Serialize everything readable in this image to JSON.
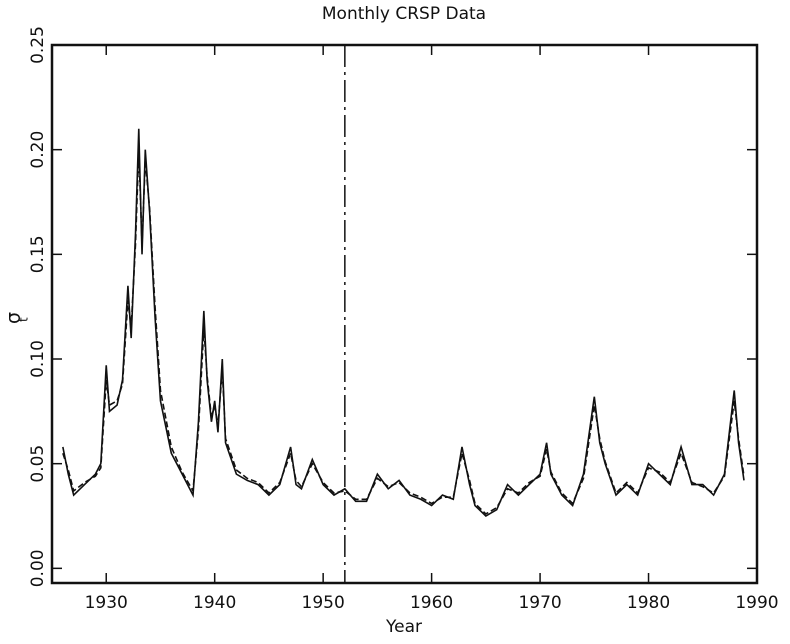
{
  "chart_data": {
    "type": "line",
    "title": "Monthly CRSP Data",
    "xlabel": "Year",
    "ylabel": "σ",
    "ylabel_sub": "t",
    "xlim": [
      1925,
      1990
    ],
    "xticks": [
      1930,
      1940,
      1950,
      1960,
      1970,
      1980,
      1990
    ],
    "ylim": [
      -0.007,
      0.25
    ],
    "yticks": [
      {
        "value": 0,
        "label": "0.00"
      },
      {
        "value": 0.05,
        "label": "0.05"
      },
      {
        "value": 0.1,
        "label": "0.10"
      },
      {
        "value": 0.15,
        "label": "0.15"
      },
      {
        "value": 0.2,
        "label": "0.20"
      },
      {
        "value": 0.25,
        "label": "0.25"
      }
    ],
    "vline_x": 1952,
    "x": [
      1926,
      1926.5,
      1927,
      1928,
      1929,
      1929.5,
      1930,
      1930.3,
      1931,
      1931.5,
      1932,
      1932.3,
      1932.7,
      1933,
      1933.3,
      1933.6,
      1934,
      1934.5,
      1935,
      1936,
      1937,
      1938,
      1938.5,
      1939,
      1939.3,
      1939.7,
      1940,
      1940.3,
      1940.7,
      1941,
      1942,
      1943,
      1944,
      1945,
      1946,
      1947,
      1947.5,
      1948,
      1949,
      1950,
      1951,
      1952,
      1953,
      1954,
      1955,
      1956,
      1957,
      1958,
      1959,
      1960,
      1961,
      1962,
      1962.8,
      1963.5,
      1964,
      1965,
      1966,
      1967,
      1968,
      1969,
      1970,
      1970.6,
      1971,
      1972,
      1973,
      1974,
      1975,
      1975.5,
      1976,
      1977,
      1978,
      1979,
      1980,
      1981,
      1982,
      1983,
      1984,
      1985,
      1986,
      1987,
      1987.9,
      1988.3,
      1988.8
    ],
    "series": [
      {
        "color": "#111111",
        "dash": false,
        "values": [
          0.058,
          0.045,
          0.035,
          0.04,
          0.045,
          0.05,
          0.097,
          0.075,
          0.078,
          0.09,
          0.135,
          0.11,
          0.16,
          0.21,
          0.15,
          0.2,
          0.17,
          0.12,
          0.08,
          0.055,
          0.045,
          0.035,
          0.07,
          0.123,
          0.09,
          0.07,
          0.08,
          0.065,
          0.1,
          0.06,
          0.045,
          0.042,
          0.04,
          0.035,
          0.04,
          0.058,
          0.04,
          0.038,
          0.052,
          0.04,
          0.035,
          0.038,
          0.032,
          0.032,
          0.045,
          0.038,
          0.042,
          0.035,
          0.033,
          0.03,
          0.035,
          0.033,
          0.058,
          0.04,
          0.03,
          0.025,
          0.028,
          0.04,
          0.035,
          0.04,
          0.045,
          0.06,
          0.045,
          0.035,
          0.03,
          0.045,
          0.082,
          0.06,
          0.05,
          0.035,
          0.04,
          0.035,
          0.05,
          0.045,
          0.04,
          0.058,
          0.04,
          0.04,
          0.035,
          0.045,
          0.085,
          0.06,
          0.042
        ]
      },
      {
        "color": "#111111",
        "dash": true,
        "values": [
          0.055,
          0.047,
          0.037,
          0.041,
          0.044,
          0.048,
          0.09,
          0.078,
          0.08,
          0.088,
          0.128,
          0.115,
          0.155,
          0.2,
          0.155,
          0.195,
          0.172,
          0.125,
          0.085,
          0.058,
          0.046,
          0.037,
          0.066,
          0.115,
          0.092,
          0.072,
          0.078,
          0.068,
          0.095,
          0.062,
          0.047,
          0.043,
          0.041,
          0.036,
          0.041,
          0.055,
          0.042,
          0.039,
          0.05,
          0.041,
          0.036,
          0.037,
          0.033,
          0.033,
          0.043,
          0.039,
          0.041,
          0.036,
          0.034,
          0.031,
          0.034,
          0.034,
          0.055,
          0.042,
          0.031,
          0.026,
          0.029,
          0.038,
          0.036,
          0.041,
          0.044,
          0.057,
          0.046,
          0.036,
          0.031,
          0.043,
          0.078,
          0.062,
          0.051,
          0.036,
          0.041,
          0.036,
          0.048,
          0.046,
          0.041,
          0.055,
          0.041,
          0.039,
          0.036,
          0.044,
          0.08,
          0.062,
          0.044
        ]
      }
    ]
  }
}
